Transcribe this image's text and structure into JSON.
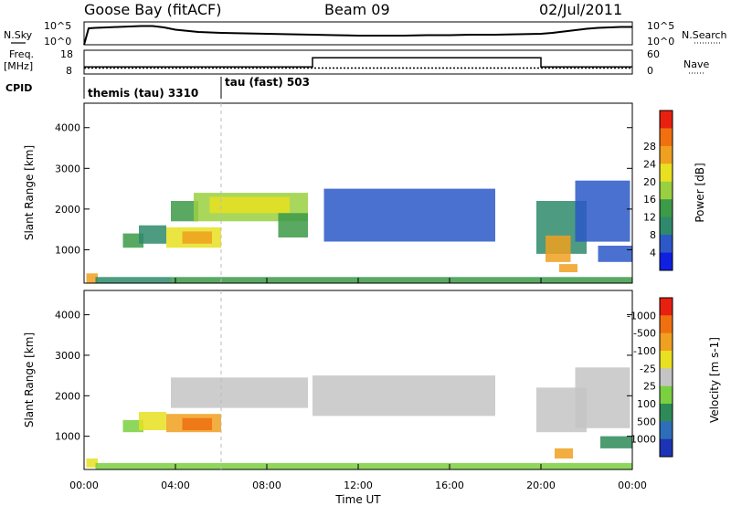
{
  "header": {
    "station": "Goose Bay (fitACF)",
    "beam": "Beam 09",
    "date": "02/Jul/2011"
  },
  "strip_labels": {
    "nsky": "N.Sky",
    "nsearch": "N.Search",
    "freq_line1": "Freq.",
    "freq_line2": "[MHz]",
    "nave": "Nave",
    "cpid": "CPID"
  },
  "cpid_labels": [
    {
      "text": "themis (tau) 3310",
      "start_hour": 0.0
    },
    {
      "text": "tau (fast) 503",
      "start_hour": 6.0
    }
  ],
  "xaxis": {
    "label": "Time UT",
    "ticks": [
      "00:00",
      "04:00",
      "08:00",
      "12:00",
      "16:00",
      "20:00",
      "00:00"
    ]
  },
  "chart_data": [
    {
      "type": "line",
      "name": "noise",
      "ylabel_left": "N.Sky",
      "ylabel_right": "N.Search",
      "left_ticks": [
        "10^5",
        "10^0"
      ],
      "right_ticks": [
        "10^5",
        "10^0"
      ],
      "x": [
        0,
        0.2,
        0.5,
        1,
        1.5,
        2,
        2.5,
        3,
        3.5,
        4,
        5,
        6,
        7,
        8,
        9,
        10,
        11,
        12,
        13,
        14,
        15,
        16,
        17,
        18,
        19,
        20,
        20.5,
        21,
        21.5,
        22,
        22.5,
        23,
        23.5,
        24
      ],
      "values": [
        0,
        3.6,
        3.7,
        3.8,
        3.9,
        4.0,
        4.1,
        4.1,
        3.8,
        3.3,
        2.8,
        2.6,
        2.5,
        2.4,
        2.3,
        2.2,
        2.1,
        2.0,
        2.0,
        2.0,
        2.1,
        2.1,
        2.2,
        2.2,
        2.3,
        2.4,
        2.6,
        2.9,
        3.2,
        3.5,
        3.7,
        3.8,
        3.9,
        3.9
      ],
      "ylim": [
        0,
        5
      ]
    },
    {
      "type": "line",
      "name": "frequency-nave",
      "ylabel_left": "Freq. [MHz]",
      "ylabel_right": "Nave",
      "left_ticks": [
        18,
        8
      ],
      "right_ticks": [
        60,
        0
      ],
      "nave_steps": [
        {
          "from": 0,
          "to": 10,
          "value": 18
        },
        {
          "from": 10,
          "to": 20,
          "value": 41
        },
        {
          "from": 20,
          "to": 24,
          "value": 18
        }
      ],
      "freq_mhz": 10.5,
      "ylim_freq": [
        8,
        18
      ],
      "ylim_nave": [
        0,
        60
      ]
    },
    {
      "type": "heatmap",
      "name": "power",
      "ylabel": "Slant Range [km]",
      "yticks": [
        1000,
        2000,
        3000,
        4000
      ],
      "ylim": [
        180,
        4600
      ],
      "xlim": [
        0,
        24
      ],
      "colorbar": {
        "label": "Power [dB]",
        "ticks": [
          "4",
          "8",
          "12",
          "16",
          "20",
          "24",
          "28"
        ],
        "colors": [
          "#1020e0",
          "#2c58c8",
          "#2e8a6a",
          "#3c9a48",
          "#9ad040",
          "#e8e020",
          "#f0a020",
          "#f07010",
          "#e82010"
        ]
      },
      "regions": [
        {
          "t0": 0.1,
          "t1": 0.6,
          "r0": 190,
          "r1": 420,
          "v": 24
        },
        {
          "t0": 0.5,
          "t1": 3.8,
          "r0": 190,
          "r1": 330,
          "v": 10
        },
        {
          "t0": 3.8,
          "t1": 24,
          "r0": 190,
          "r1": 330,
          "v": 12
        },
        {
          "t0": 1.7,
          "t1": 2.6,
          "r0": 1050,
          "r1": 1400,
          "v": 12
        },
        {
          "t0": 2.4,
          "t1": 3.6,
          "r0": 1150,
          "r1": 1600,
          "v": 9
        },
        {
          "t0": 3.6,
          "t1": 6.0,
          "r0": 1050,
          "r1": 1550,
          "v": 20
        },
        {
          "t0": 4.3,
          "t1": 5.6,
          "r0": 1150,
          "r1": 1450,
          "v": 27
        },
        {
          "t0": 3.8,
          "t1": 5.0,
          "r0": 1700,
          "r1": 2200,
          "v": 12
        },
        {
          "t0": 4.8,
          "t1": 9.8,
          "r0": 1700,
          "r1": 2400,
          "v": 16
        },
        {
          "t0": 5.5,
          "t1": 9.0,
          "r0": 1900,
          "r1": 2300,
          "v": 20
        },
        {
          "t0": 8.5,
          "t1": 9.8,
          "r0": 1300,
          "r1": 1900,
          "v": 12
        },
        {
          "t0": 10.5,
          "t1": 18.0,
          "r0": 1200,
          "r1": 2500,
          "v": 6
        },
        {
          "t0": 19.8,
          "t1": 22.0,
          "r0": 900,
          "r1": 2200,
          "v": 10
        },
        {
          "t0": 20.2,
          "t1": 21.3,
          "r0": 700,
          "r1": 1350,
          "v": 24
        },
        {
          "t0": 20.8,
          "t1": 21.6,
          "r0": 450,
          "r1": 650,
          "v": 24
        },
        {
          "t0": 21.5,
          "t1": 23.9,
          "r0": 1200,
          "r1": 2700,
          "v": 7
        },
        {
          "t0": 22.5,
          "t1": 24,
          "r0": 700,
          "r1": 1100,
          "v": 5
        }
      ]
    },
    {
      "type": "heatmap",
      "name": "velocity",
      "ylabel": "Slant Range [km]",
      "yticks": [
        1000,
        2000,
        3000,
        4000
      ],
      "ylim": [
        180,
        4600
      ],
      "xlim": [
        0,
        24
      ],
      "colorbar": {
        "label": "Velocity [m s-1]",
        "ticks": [
          "1000",
          "500",
          "100",
          "25",
          "-25",
          "-100",
          "-500",
          "-1000"
        ],
        "colors": [
          "#1c34b4",
          "#2e6eb8",
          "#2e8a58",
          "#7ad040",
          "#c4c4c4",
          "#e8e020",
          "#f0a020",
          "#f07010",
          "#e82010"
        ]
      },
      "regions": [
        {
          "t0": 0.1,
          "t1": 0.6,
          "r0": 230,
          "r1": 450,
          "v": -100
        },
        {
          "t0": 0.5,
          "t1": 24,
          "r0": 190,
          "r1": 340,
          "v": 60
        },
        {
          "t0": 1.7,
          "t1": 2.6,
          "r0": 1100,
          "r1": 1400,
          "v": 60
        },
        {
          "t0": 2.4,
          "t1": 3.6,
          "r0": 1150,
          "r1": 1600,
          "v": -60
        },
        {
          "t0": 3.6,
          "t1": 6.0,
          "r0": 1100,
          "r1": 1550,
          "v": -300
        },
        {
          "t0": 4.3,
          "t1": 5.6,
          "r0": 1150,
          "r1": 1450,
          "v": -700
        },
        {
          "t0": 3.8,
          "t1": 9.8,
          "r0": 1700,
          "r1": 2450,
          "v": 0
        },
        {
          "t0": 10.0,
          "t1": 18.0,
          "r0": 1500,
          "r1": 2500,
          "v": 0
        },
        {
          "t0": 19.8,
          "t1": 22.0,
          "r0": 1100,
          "r1": 2200,
          "v": 0
        },
        {
          "t0": 20.6,
          "t1": 21.4,
          "r0": 450,
          "r1": 700,
          "v": -300
        },
        {
          "t0": 21.5,
          "t1": 23.9,
          "r0": 1200,
          "r1": 2700,
          "v": 0
        },
        {
          "t0": 22.6,
          "t1": 24,
          "r0": 700,
          "r1": 1000,
          "v": 200
        }
      ]
    }
  ]
}
